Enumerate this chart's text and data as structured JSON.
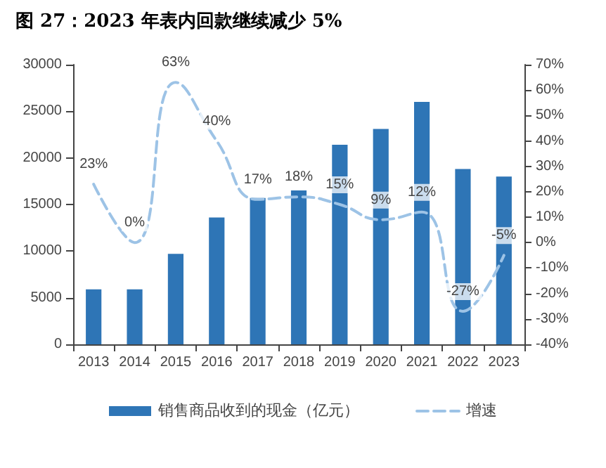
{
  "chart_data": {
    "type": "bar",
    "title": "图 27：2023 年表内回款继续减少 5%",
    "categories": [
      "2013",
      "2014",
      "2015",
      "2016",
      "2017",
      "2018",
      "2019",
      "2020",
      "2021",
      "2022",
      "2023"
    ],
    "series": [
      {
        "name": "销售商品收到的现金（亿元）",
        "color": "#2e75b6",
        "values": [
          5900,
          5900,
          9700,
          13600,
          15700,
          16500,
          21400,
          23100,
          26000,
          18800,
          18000
        ]
      },
      {
        "name": "增速",
        "type": "line",
        "axis": "y2",
        "color": "#9dc3e6",
        "line_style": "dashed",
        "marker": "none",
        "values": [
          23,
          0,
          63,
          40,
          17,
          18,
          15,
          9,
          12,
          -27,
          -5
        ],
        "value_labels": [
          "23%",
          "0%",
          "63%",
          "40%",
          "17%",
          "18%",
          "15%",
          "9%",
          "12%",
          "-27%",
          "-5%"
        ]
      }
    ],
    "ylim": [
      0,
      30000
    ],
    "yticks": [
      0,
      5000,
      10000,
      15000,
      20000,
      25000,
      30000
    ],
    "y2lim": [
      -40,
      70
    ],
    "y2ticks": [
      {
        "value": -40,
        "label": "-40%"
      },
      {
        "value": -30,
        "label": "-30%"
      },
      {
        "value": -20,
        "label": "-20%"
      },
      {
        "value": -10,
        "label": "-10%"
      },
      {
        "value": 0,
        "label": "0%"
      },
      {
        "value": 10,
        "label": "10%"
      },
      {
        "value": 20,
        "label": "20%"
      },
      {
        "value": 30,
        "label": "30%"
      },
      {
        "value": 40,
        "label": "40%"
      },
      {
        "value": 50,
        "label": "50%"
      },
      {
        "value": 60,
        "label": "60%"
      },
      {
        "value": 70,
        "label": "70%"
      }
    ],
    "grid": false,
    "legend": "bottom"
  }
}
